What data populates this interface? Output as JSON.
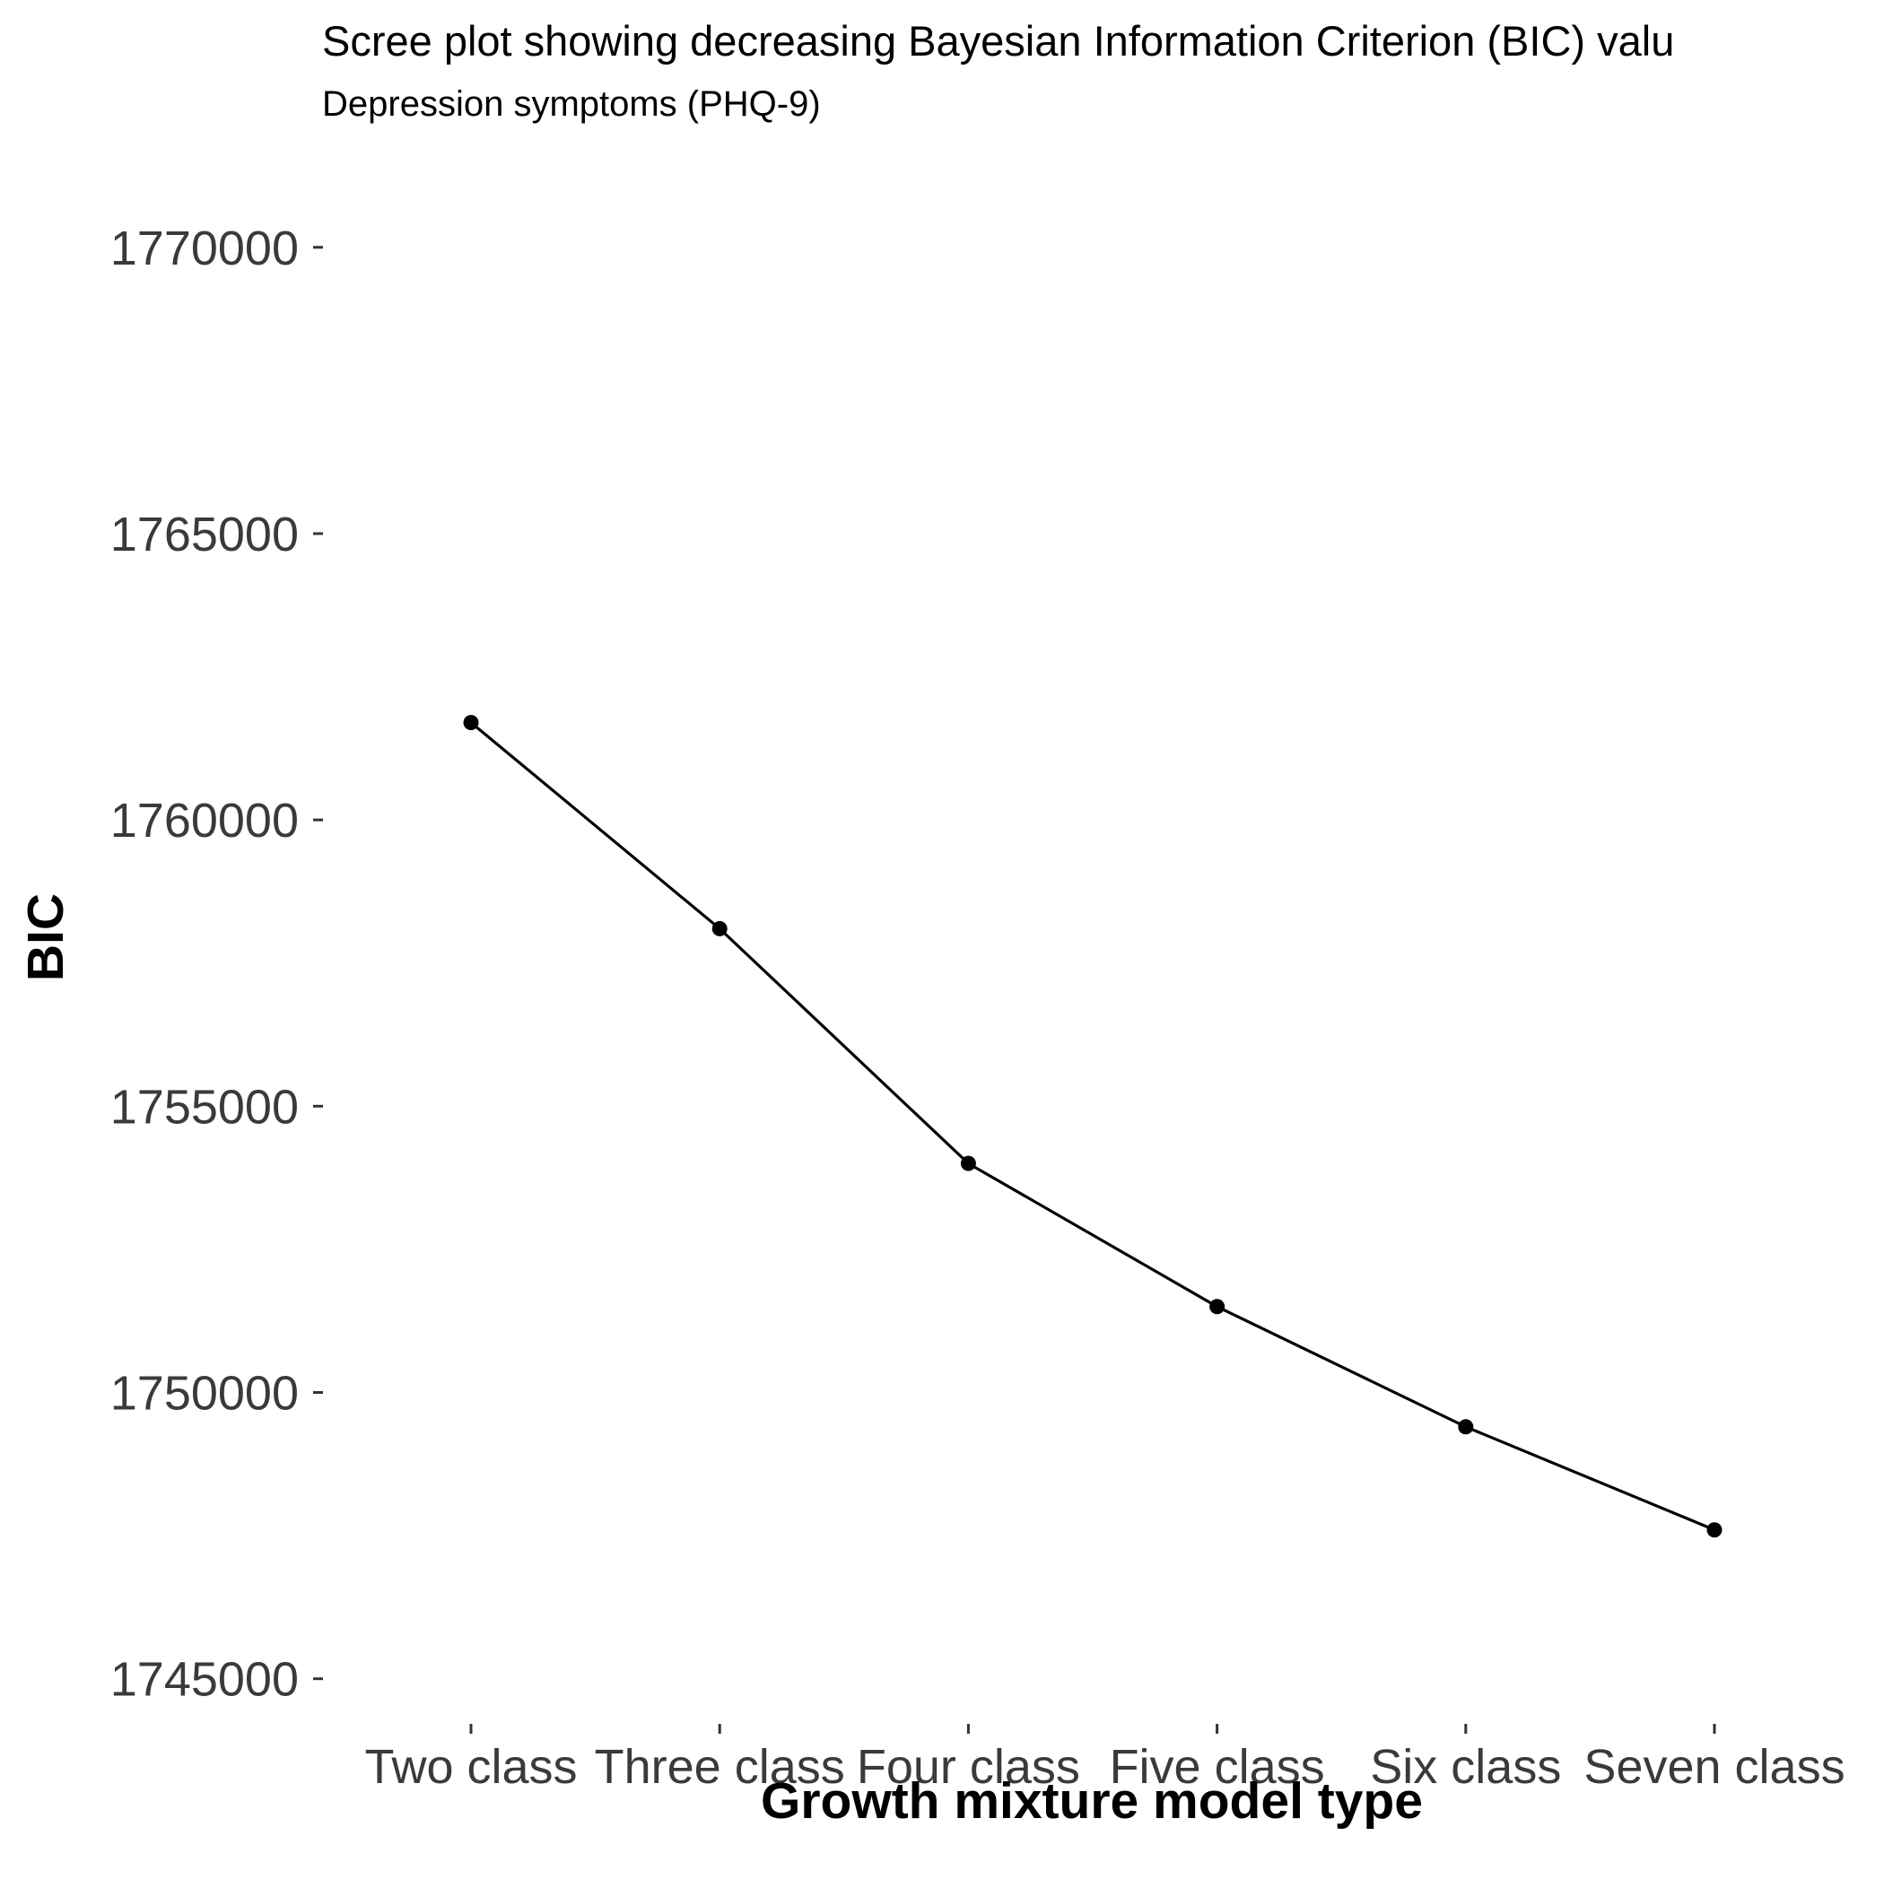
{
  "chart_data": {
    "type": "line",
    "title": "Scree plot showing decreasing Bayesian Information Criterion (BIC) valu",
    "subtitle": "Depression symptoms (PHQ-9)",
    "xlabel": "Growth mixture model type",
    "ylabel": "BIC",
    "categories": [
      "Two class",
      "Three class",
      "Four class",
      "Five class",
      "Six class",
      "Seven class"
    ],
    "values": [
      1761700,
      1758100,
      1754000,
      1751500,
      1749400,
      1747600
    ],
    "ylim": [
      1744400,
      1771500
    ],
    "yticks": [
      1745000,
      1750000,
      1755000,
      1760000,
      1765000,
      1770000
    ],
    "ytick_labels": [
      "1745000",
      "1750000",
      "1755000",
      "1760000",
      "1765000",
      "1770000"
    ],
    "grid": false,
    "legend": "none",
    "line_color": "#000000",
    "point_color": "#000000"
  }
}
